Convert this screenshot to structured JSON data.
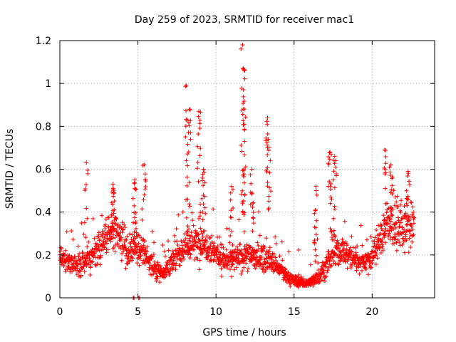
{
  "chart_data": {
    "type": "scatter",
    "title": "Day 259 of 2023, SRMTID for receiver mac1",
    "xlabel": "GPS time / hours",
    "ylabel": "SRMTID / TECUs",
    "xlim": [
      0,
      24
    ],
    "ylim": [
      0,
      1.2
    ],
    "xticks": [
      0,
      5,
      10,
      15,
      20
    ],
    "xtick_labels": [
      "0",
      "5",
      "10",
      "15",
      "20"
    ],
    "yticks": [
      0,
      0.2,
      0.4,
      0.6,
      0.8,
      1,
      1.2
    ],
    "ytick_labels": [
      "0",
      "0.2",
      "0.4",
      "0.6",
      "0.8",
      "1",
      "1.2"
    ],
    "grid": true,
    "marker": "+",
    "color": "#ff0000",
    "x_data_range": [
      0,
      22.7
    ],
    "baseline_profile": [
      [
        0.0,
        0.19
      ],
      [
        0.5,
        0.16
      ],
      [
        1.0,
        0.15
      ],
      [
        1.5,
        0.17
      ],
      [
        2.0,
        0.19
      ],
      [
        2.5,
        0.24
      ],
      [
        3.0,
        0.29
      ],
      [
        3.5,
        0.3
      ],
      [
        4.0,
        0.25
      ],
      [
        4.5,
        0.21
      ],
      [
        5.0,
        0.23
      ],
      [
        5.5,
        0.2
      ],
      [
        6.0,
        0.14
      ],
      [
        6.5,
        0.12
      ],
      [
        7.0,
        0.14
      ],
      [
        7.5,
        0.2
      ],
      [
        8.0,
        0.24
      ],
      [
        8.5,
        0.25
      ],
      [
        9.0,
        0.26
      ],
      [
        9.5,
        0.25
      ],
      [
        10.0,
        0.21
      ],
      [
        10.5,
        0.18
      ],
      [
        11.0,
        0.17
      ],
      [
        11.5,
        0.19
      ],
      [
        12.0,
        0.2
      ],
      [
        12.5,
        0.19
      ],
      [
        13.0,
        0.19
      ],
      [
        13.5,
        0.17
      ],
      [
        14.0,
        0.14
      ],
      [
        14.5,
        0.1
      ],
      [
        15.0,
        0.08
      ],
      [
        15.5,
        0.07
      ],
      [
        16.0,
        0.07
      ],
      [
        16.5,
        0.1
      ],
      [
        17.0,
        0.14
      ],
      [
        17.5,
        0.2
      ],
      [
        18.0,
        0.22
      ],
      [
        18.5,
        0.2
      ],
      [
        19.0,
        0.18
      ],
      [
        19.5,
        0.17
      ],
      [
        20.0,
        0.19
      ],
      [
        20.5,
        0.27
      ],
      [
        21.0,
        0.35
      ],
      [
        21.5,
        0.33
      ],
      [
        22.0,
        0.32
      ],
      [
        22.5,
        0.33
      ]
    ],
    "peaks": [
      [
        1.7,
        0.63
      ],
      [
        3.4,
        0.53
      ],
      [
        4.8,
        0.55
      ],
      [
        5.4,
        0.62
      ],
      [
        8.1,
        0.99
      ],
      [
        8.3,
        0.88
      ],
      [
        8.9,
        0.87
      ],
      [
        9.2,
        0.6
      ],
      [
        11.0,
        0.52
      ],
      [
        11.7,
        1.18
      ],
      [
        11.75,
        1.07
      ],
      [
        11.8,
        0.88
      ],
      [
        12.3,
        0.6
      ],
      [
        13.3,
        0.84
      ],
      [
        13.4,
        0.7
      ],
      [
        16.4,
        0.52
      ],
      [
        17.3,
        0.68
      ],
      [
        17.6,
        0.66
      ],
      [
        20.8,
        0.69
      ],
      [
        21.2,
        0.62
      ],
      [
        22.3,
        0.59
      ]
    ],
    "zero_points": [
      4.7,
      4.75,
      5.05,
      5.1
    ]
  }
}
